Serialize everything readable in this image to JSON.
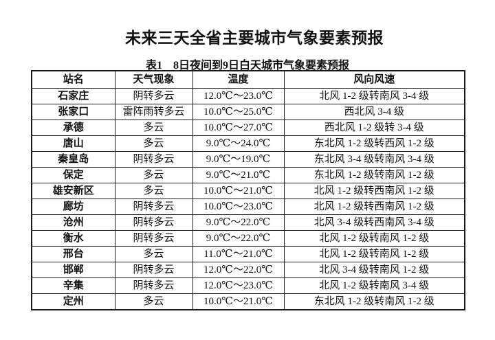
{
  "page": {
    "title": "未来三天全省主要城市气象要素预报",
    "subtitle": "表1　8日夜间到9日白天城市气象要素预报"
  },
  "table": {
    "headers": [
      "站名",
      "天气现象",
      "温度",
      "风向风速"
    ],
    "rows": [
      {
        "station": "石家庄",
        "weather": "阴转多云",
        "temperature": "12.0℃～23.0℃",
        "wind": "北风 1-2 级转南风 3-4 级"
      },
      {
        "station": "张家口",
        "weather": "雷阵雨转多云",
        "temperature": "10.0℃～25.0℃",
        "wind": "西北风 3-4 级"
      },
      {
        "station": "承德",
        "weather": "多云",
        "temperature": "10.0℃～27.0℃",
        "wind": "西北风 1-2 级转 3-4 级"
      },
      {
        "station": "唐山",
        "weather": "多云",
        "temperature": "9.0℃～24.0℃",
        "wind": "东北风 1-2 级转西风 1-2 级"
      },
      {
        "station": "秦皇岛",
        "weather": "阴转多云",
        "temperature": "9.0℃～19.0℃",
        "wind": "东北风 3-4 级转南风 3-4 级"
      },
      {
        "station": "保定",
        "weather": "多云",
        "temperature": "9.0℃～21.0℃",
        "wind": "东北风 1-2 级转南风 1-2 级"
      },
      {
        "station": "雄安新区",
        "weather": "多云",
        "temperature": "10.0℃～21.0℃",
        "wind": "北风 1-2 级转西南风 1-2 级"
      },
      {
        "station": "廊坊",
        "weather": "阴转多云",
        "temperature": "10.0℃～23.0℃",
        "wind": "北风 1-2 级转西南风 1-2 级"
      },
      {
        "station": "沧州",
        "weather": "阴转多云",
        "temperature": "9.0℃～22.0℃",
        "wind": "北风 3-4 级转西南风 3-4 级"
      },
      {
        "station": "衡水",
        "weather": "阴转多云",
        "temperature": "9.0℃～22.0℃",
        "wind": "北风 1-2 级转南风 1-2 级"
      },
      {
        "station": "邢台",
        "weather": "多云",
        "temperature": "11.0℃～21.0℃",
        "wind": "北风 1-2 级转南风 1-2 级"
      },
      {
        "station": "邯郸",
        "weather": "阴转多云",
        "temperature": "12.0℃～22.0℃",
        "wind": "北风 3-4 级转南风 1-2 级"
      },
      {
        "station": "辛集",
        "weather": "阴转多云",
        "temperature": "12.0℃～23.0℃",
        "wind": "北风 1-2 级转南风 3-4 级"
      },
      {
        "station": "定州",
        "weather": "多云",
        "temperature": "10.0℃～21.0℃",
        "wind": "东北风 1-2 级转南风 1-2 级"
      }
    ]
  },
  "colors": {
    "text": "#111111",
    "border": "#1a1a1a",
    "background": "#ffffff"
  }
}
